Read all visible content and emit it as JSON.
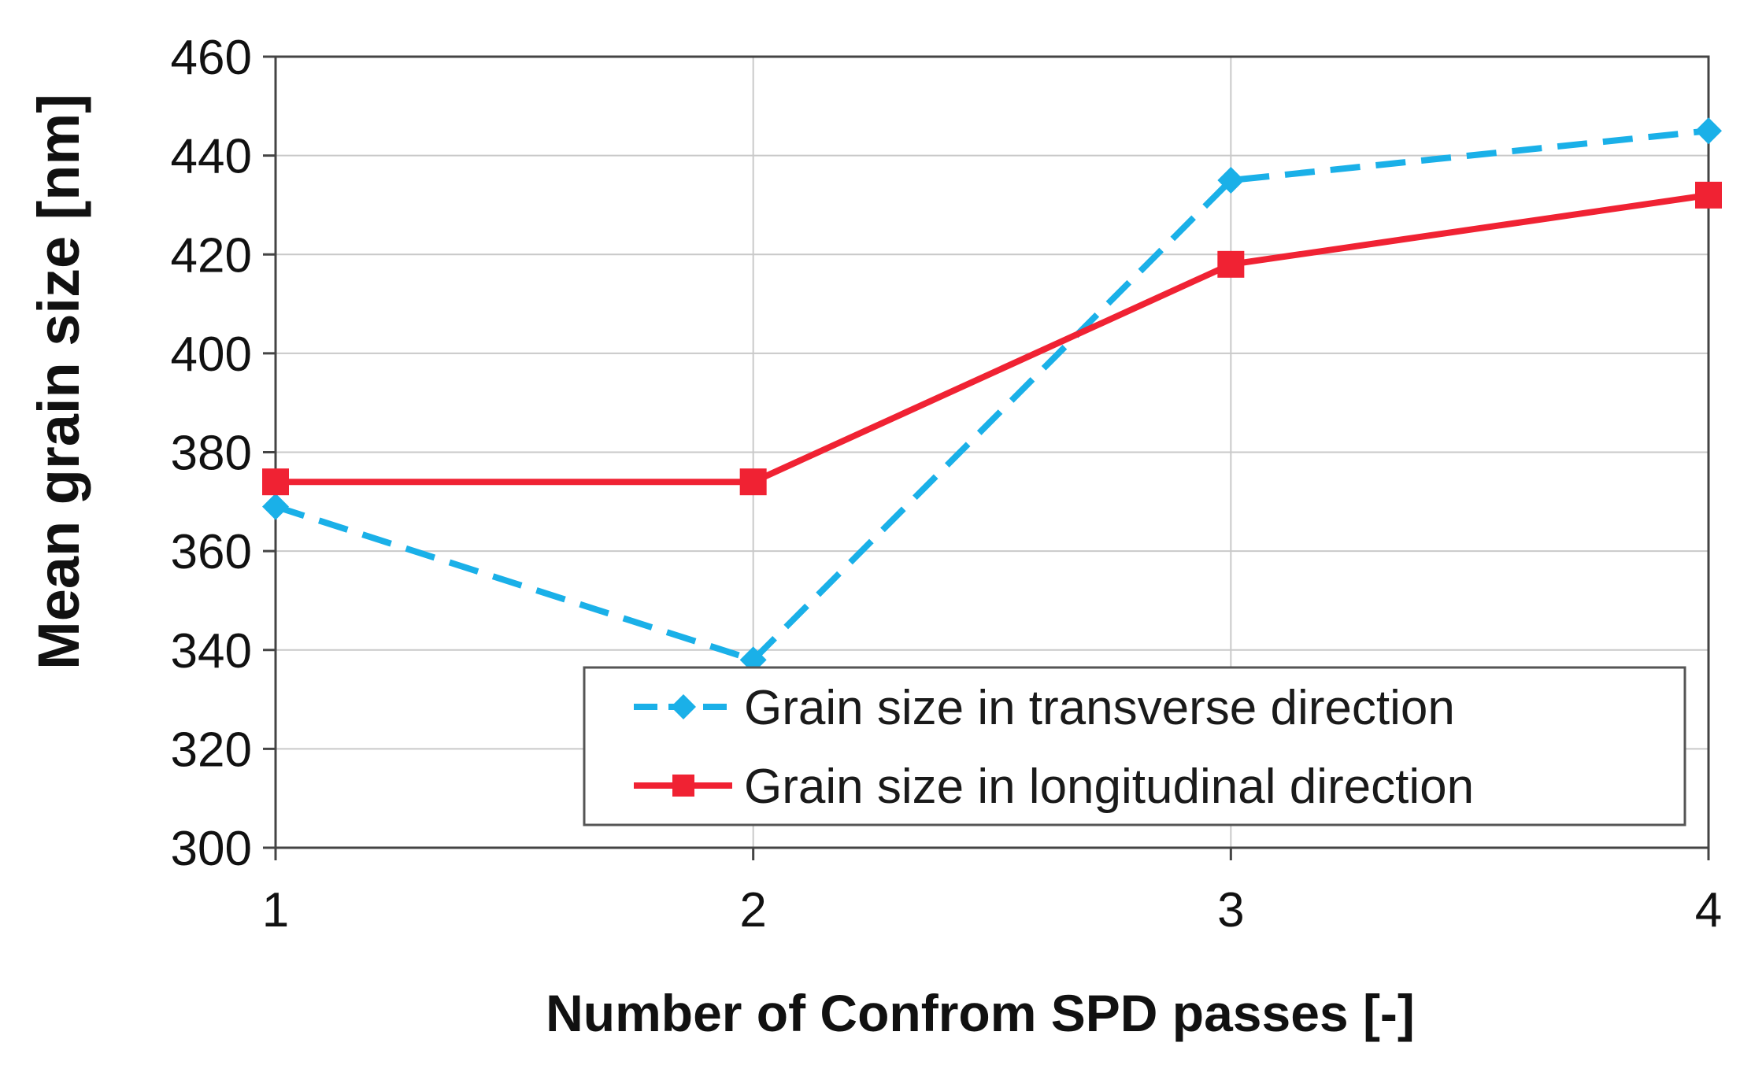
{
  "chart_data": {
    "type": "line",
    "title": "",
    "xlabel": "Number of Confrom SPD passes [-]",
    "ylabel": "Mean grain size [nm]",
    "x": [
      1,
      2,
      3,
      4
    ],
    "x_ticks": [
      "1",
      "2",
      "3",
      "4"
    ],
    "xlim": [
      1,
      4
    ],
    "ylim": [
      300,
      460
    ],
    "y_ticks": [
      "300",
      "320",
      "340",
      "360",
      "380",
      "400",
      "420",
      "440",
      "460"
    ],
    "grid": true,
    "legend_position": "bottom-right",
    "series": [
      {
        "name": "Grain size in transverse direction",
        "values": [
          369,
          338,
          435,
          445
        ],
        "color": "#1ab0e8",
        "line_style": "dashed",
        "marker": "diamond"
      },
      {
        "name": "Grain size in longitudinal direction",
        "values": [
          374,
          374,
          418,
          432
        ],
        "color": "#f02233",
        "line_style": "solid",
        "marker": "square"
      }
    ]
  }
}
